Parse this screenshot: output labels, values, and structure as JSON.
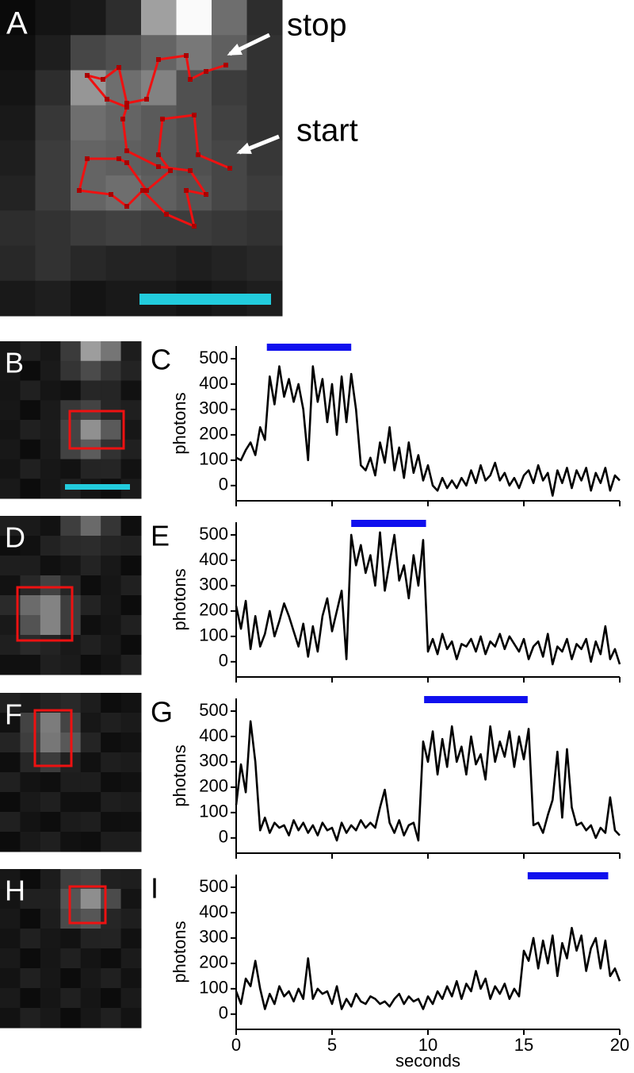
{
  "images": [
    {
      "label": "A"
    },
    {
      "label": "B"
    },
    {
      "label": "D"
    },
    {
      "label": "F"
    },
    {
      "label": "H"
    }
  ],
  "annotations": [
    "stop",
    "start"
  ],
  "chart_data": [
    {
      "type": "line",
      "label": "C",
      "ylabel": "photons",
      "color": "#000000",
      "highlight": [
        1.6,
        6.0
      ],
      "highlight_color": "#1010ee",
      "xlim": [
        0,
        20
      ],
      "xticks": [
        0,
        5,
        10,
        15,
        20
      ],
      "show_xtick_labels": false,
      "ylim": [
        -60,
        550
      ],
      "yticks": [
        0,
        100,
        200,
        300,
        400,
        500
      ],
      "x": [
        0,
        0.25,
        0.5,
        0.75,
        1,
        1.25,
        1.5,
        1.75,
        2,
        2.25,
        2.5,
        2.75,
        3,
        3.25,
        3.5,
        3.75,
        4,
        4.25,
        4.5,
        4.75,
        5,
        5.25,
        5.5,
        5.75,
        6,
        6.25,
        6.5,
        6.75,
        7,
        7.25,
        7.5,
        7.75,
        8,
        8.25,
        8.5,
        8.75,
        9,
        9.25,
        9.5,
        9.75,
        10,
        10.25,
        10.5,
        10.75,
        11,
        11.25,
        11.5,
        11.75,
        12,
        12.25,
        12.5,
        12.75,
        13,
        13.25,
        13.5,
        13.75,
        14,
        14.25,
        14.5,
        14.75,
        15,
        15.25,
        15.5,
        15.75,
        16,
        16.25,
        16.5,
        16.75,
        17,
        17.25,
        17.5,
        17.75,
        18,
        18.25,
        18.5,
        18.75,
        19,
        19.25,
        19.5,
        19.75,
        20
      ],
      "values": [
        110,
        100,
        140,
        170,
        120,
        230,
        180,
        430,
        320,
        470,
        350,
        420,
        330,
        400,
        300,
        100,
        470,
        330,
        420,
        250,
        400,
        200,
        430,
        250,
        440,
        300,
        80,
        60,
        110,
        40,
        170,
        90,
        230,
        60,
        150,
        30,
        170,
        50,
        120,
        20,
        80,
        0,
        -20,
        30,
        -10,
        20,
        -10,
        30,
        0,
        60,
        10,
        80,
        20,
        40,
        90,
        20,
        50,
        0,
        30,
        -10,
        40,
        60,
        10,
        80,
        20,
        50,
        -40,
        60,
        10,
        70,
        -10,
        60,
        20,
        70,
        -20,
        50,
        10,
        70,
        -20,
        40,
        20
      ]
    },
    {
      "type": "line",
      "label": "E",
      "ylabel": "photons",
      "color": "#000000",
      "highlight": [
        6.0,
        9.9
      ],
      "highlight_color": "#1010ee",
      "xlim": [
        0,
        20
      ],
      "xticks": [
        0,
        5,
        10,
        15,
        20
      ],
      "show_xtick_labels": false,
      "ylim": [
        -60,
        550
      ],
      "yticks": [
        0,
        100,
        200,
        300,
        400,
        500
      ],
      "x": [
        0,
        0.25,
        0.5,
        0.75,
        1,
        1.25,
        1.5,
        1.75,
        2,
        2.25,
        2.5,
        2.75,
        3,
        3.25,
        3.5,
        3.75,
        4,
        4.25,
        4.5,
        4.75,
        5,
        5.25,
        5.5,
        5.75,
        6,
        6.25,
        6.5,
        6.75,
        7,
        7.25,
        7.5,
        7.75,
        8,
        8.25,
        8.5,
        8.75,
        9,
        9.25,
        9.5,
        9.75,
        10,
        10.25,
        10.5,
        10.75,
        11,
        11.25,
        11.5,
        11.75,
        12,
        12.25,
        12.5,
        12.75,
        13,
        13.25,
        13.5,
        13.75,
        14,
        14.25,
        14.5,
        14.75,
        15,
        15.25,
        15.5,
        15.75,
        16,
        16.25,
        16.5,
        16.75,
        17,
        17.25,
        17.5,
        17.75,
        18,
        18.25,
        18.5,
        18.75,
        19,
        19.25,
        19.5,
        19.75,
        20
      ],
      "values": [
        220,
        130,
        240,
        50,
        180,
        60,
        110,
        200,
        100,
        160,
        230,
        180,
        120,
        60,
        150,
        20,
        140,
        40,
        180,
        250,
        120,
        200,
        280,
        10,
        500,
        380,
        460,
        350,
        420,
        300,
        510,
        280,
        390,
        500,
        320,
        380,
        250,
        420,
        300,
        480,
        40,
        90,
        30,
        110,
        50,
        80,
        10,
        70,
        60,
        90,
        40,
        100,
        30,
        80,
        60,
        110,
        50,
        100,
        70,
        40,
        90,
        10,
        60,
        80,
        20,
        110,
        -10,
        60,
        40,
        90,
        10,
        70,
        50,
        90,
        0,
        80,
        30,
        140,
        10,
        50,
        -10
      ]
    },
    {
      "type": "line",
      "label": "G",
      "ylabel": "photons",
      "color": "#000000",
      "highlight": [
        9.8,
        15.2
      ],
      "highlight_color": "#1010ee",
      "xlim": [
        0,
        20
      ],
      "xticks": [
        0,
        5,
        10,
        15,
        20
      ],
      "show_xtick_labels": false,
      "ylim": [
        -60,
        550
      ],
      "yticks": [
        0,
        100,
        200,
        300,
        400,
        500
      ],
      "x": [
        0,
        0.25,
        0.5,
        0.75,
        1,
        1.25,
        1.5,
        1.75,
        2,
        2.25,
        2.5,
        2.75,
        3,
        3.25,
        3.5,
        3.75,
        4,
        4.25,
        4.5,
        4.75,
        5,
        5.25,
        5.5,
        5.75,
        6,
        6.25,
        6.5,
        6.75,
        7,
        7.25,
        7.5,
        7.75,
        8,
        8.25,
        8.5,
        8.75,
        9,
        9.25,
        9.5,
        9.75,
        10,
        10.25,
        10.5,
        10.75,
        11,
        11.25,
        11.5,
        11.75,
        12,
        12.25,
        12.5,
        12.75,
        13,
        13.25,
        13.5,
        13.75,
        14,
        14.25,
        14.5,
        14.75,
        15,
        15.25,
        15.5,
        15.75,
        16,
        16.25,
        16.5,
        16.75,
        17,
        17.25,
        17.5,
        17.75,
        18,
        18.25,
        18.5,
        18.75,
        19,
        19.25,
        19.5,
        19.75,
        20
      ],
      "values": [
        130,
        290,
        180,
        460,
        300,
        30,
        80,
        20,
        60,
        40,
        50,
        10,
        70,
        30,
        60,
        20,
        50,
        10,
        60,
        30,
        40,
        -10,
        60,
        20,
        50,
        30,
        70,
        40,
        60,
        40,
        120,
        190,
        60,
        20,
        70,
        10,
        50,
        60,
        -10,
        380,
        300,
        420,
        250,
        390,
        280,
        440,
        300,
        360,
        250,
        400,
        290,
        330,
        230,
        440,
        300,
        380,
        320,
        420,
        280,
        400,
        310,
        430,
        50,
        60,
        20,
        90,
        150,
        340,
        80,
        350,
        120,
        50,
        60,
        30,
        50,
        0,
        40,
        20,
        160,
        30,
        10
      ]
    },
    {
      "type": "line",
      "label": "I",
      "ylabel": "photons",
      "xlabel": "seconds",
      "color": "#000000",
      "highlight": [
        15.2,
        19.4
      ],
      "highlight_color": "#1010ee",
      "xlim": [
        0,
        20
      ],
      "xticks": [
        0,
        5,
        10,
        15,
        20
      ],
      "show_xtick_labels": true,
      "ylim": [
        -60,
        550
      ],
      "yticks": [
        0,
        100,
        200,
        300,
        400,
        500
      ],
      "x": [
        0,
        0.25,
        0.5,
        0.75,
        1,
        1.25,
        1.5,
        1.75,
        2,
        2.25,
        2.5,
        2.75,
        3,
        3.25,
        3.5,
        3.75,
        4,
        4.25,
        4.5,
        4.75,
        5,
        5.25,
        5.5,
        5.75,
        6,
        6.25,
        6.5,
        6.75,
        7,
        7.25,
        7.5,
        7.75,
        8,
        8.25,
        8.5,
        8.75,
        9,
        9.25,
        9.5,
        9.75,
        10,
        10.25,
        10.5,
        10.75,
        11,
        11.25,
        11.5,
        11.75,
        12,
        12.25,
        12.5,
        12.75,
        13,
        13.25,
        13.5,
        13.75,
        14,
        14.25,
        14.5,
        14.75,
        15,
        15.25,
        15.5,
        15.75,
        16,
        16.25,
        16.5,
        16.75,
        17,
        17.25,
        17.5,
        17.75,
        18,
        18.25,
        18.5,
        18.75,
        19,
        19.25,
        19.5,
        19.75,
        20
      ],
      "values": [
        90,
        40,
        140,
        110,
        210,
        100,
        20,
        80,
        40,
        110,
        70,
        90,
        50,
        100,
        60,
        220,
        60,
        100,
        80,
        90,
        40,
        110,
        20,
        60,
        30,
        80,
        50,
        40,
        70,
        60,
        40,
        50,
        30,
        60,
        80,
        40,
        70,
        50,
        60,
        20,
        70,
        40,
        90,
        60,
        110,
        70,
        130,
        60,
        120,
        90,
        170,
        100,
        140,
        60,
        110,
        80,
        120,
        60,
        100,
        70,
        250,
        210,
        300,
        180,
        290,
        200,
        310,
        150,
        280,
        220,
        340,
        250,
        310,
        170,
        260,
        300,
        180,
        290,
        150,
        180,
        130
      ]
    }
  ]
}
